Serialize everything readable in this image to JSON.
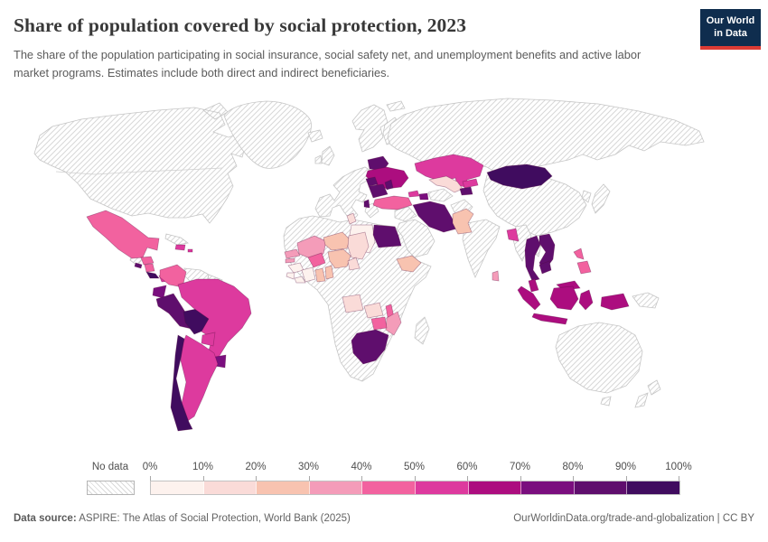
{
  "page": {
    "background": "#ffffff"
  },
  "header": {
    "title": "Share of population covered by social protection, 2023",
    "subtitle": "The share of the population participating in social insurance, social safety net, and unemployment benefits and active labor market programs. Estimates include both direct and indirect beneficiaries.",
    "logo": {
      "line1": "Our World",
      "line2": "in Data",
      "bg_color": "#0f2d4e",
      "accent_color": "#dc3b34"
    }
  },
  "legend": {
    "no_data_label": "No data",
    "tick_labels": [
      "0%",
      "10%",
      "20%",
      "30%",
      "40%",
      "50%",
      "60%",
      "70%",
      "80%",
      "90%",
      "100%"
    ],
    "buckets": [
      {
        "range": "0-10%",
        "color": "#fdf2ee"
      },
      {
        "range": "10-20%",
        "color": "#fadbd8"
      },
      {
        "range": "20-30%",
        "color": "#f8c3b0"
      },
      {
        "range": "30-40%",
        "color": "#f49cb9"
      },
      {
        "range": "40-50%",
        "color": "#f2629f"
      },
      {
        "range": "50-60%",
        "color": "#dd3a9e"
      },
      {
        "range": "60-70%",
        "color": "#ac0d7f"
      },
      {
        "range": "70-80%",
        "color": "#7a0e7e"
      },
      {
        "range": "80-90%",
        "color": "#5f0e6d"
      },
      {
        "range": "90-100%",
        "color": "#400c5f"
      }
    ]
  },
  "footer": {
    "source_label": "Data source:",
    "source_text": " ASPIRE: The Atlas of Social Protection, World Bank (2025)",
    "link_text": "OurWorldinData.org/trade-and-globalization | CC BY"
  },
  "chart_data": {
    "type": "choropleth_map",
    "title": "Share of population covered by social protection, 2023",
    "unit": "% of population covered",
    "countries": [
      {
        "id": "mexico",
        "name": "Mexico",
        "range": "40-50%"
      },
      {
        "id": "honduras",
        "name": "Honduras",
        "range": "40-50%"
      },
      {
        "id": "el-salvador",
        "name": "El Salvador",
        "range": "80-90%"
      },
      {
        "id": "nicaragua",
        "name": "Nicaragua",
        "range": "40-50%"
      },
      {
        "id": "costa-rica",
        "name": "Costa Rica",
        "range": "90-100%"
      },
      {
        "id": "panama",
        "name": "Panama",
        "range": "50-60%"
      },
      {
        "id": "dominican-republic",
        "name": "Dominican Republic",
        "range": "50-60%"
      },
      {
        "id": "puerto-rico",
        "name": "Puerto Rico",
        "range": "50-60%"
      },
      {
        "id": "colombia",
        "name": "Colombia",
        "range": "40-50%"
      },
      {
        "id": "ecuador",
        "name": "Ecuador",
        "range": "70-80%"
      },
      {
        "id": "peru",
        "name": "Peru",
        "range": "80-90%"
      },
      {
        "id": "bolivia",
        "name": "Bolivia",
        "range": "90-100%"
      },
      {
        "id": "brazil",
        "name": "Brazil",
        "range": "50-60%"
      },
      {
        "id": "paraguay",
        "name": "Paraguay",
        "range": "50-60%"
      },
      {
        "id": "uruguay",
        "name": "Uruguay",
        "range": "70-80%"
      },
      {
        "id": "argentina",
        "name": "Argentina",
        "range": "50-60%"
      },
      {
        "id": "chile",
        "name": "Chile",
        "range": "90-100%"
      },
      {
        "id": "tunisia",
        "name": "Tunisia",
        "range": "10-20%"
      },
      {
        "id": "libya",
        "name": "Libya",
        "range": "0-10%"
      },
      {
        "id": "egypt",
        "name": "Egypt",
        "range": "80-90%"
      },
      {
        "id": "senegal",
        "name": "Senegal",
        "range": "30-40%"
      },
      {
        "id": "gambia",
        "name": "Gambia",
        "range": "30-40%"
      },
      {
        "id": "guinea",
        "name": "Guinea",
        "range": "0-10%"
      },
      {
        "id": "sierra-leone",
        "name": "Sierra Leone",
        "range": "0-10%"
      },
      {
        "id": "liberia",
        "name": "Liberia",
        "range": "0-10%"
      },
      {
        "id": "cote-divoire",
        "name": "Cote d'Ivoire",
        "range": "0-10%"
      },
      {
        "id": "ghana",
        "name": "Ghana",
        "range": "20-30%"
      },
      {
        "id": "benin",
        "name": "Benin",
        "range": "20-30%"
      },
      {
        "id": "mali",
        "name": "Mali",
        "range": "30-40%"
      },
      {
        "id": "burkina-faso",
        "name": "Burkina Faso",
        "range": "40-50%"
      },
      {
        "id": "niger",
        "name": "Niger",
        "range": "20-30%"
      },
      {
        "id": "nigeria",
        "name": "Nigeria",
        "range": "20-30%"
      },
      {
        "id": "chad",
        "name": "Chad",
        "range": "10-20%"
      },
      {
        "id": "cameroon",
        "name": "Cameroon",
        "range": "10-20%"
      },
      {
        "id": "ethiopia",
        "name": "Ethiopia",
        "range": "20-30%"
      },
      {
        "id": "angola",
        "name": "Angola",
        "range": "10-20%"
      },
      {
        "id": "zambia",
        "name": "Zambia",
        "range": "10-20%"
      },
      {
        "id": "malawi",
        "name": "Malawi",
        "range": "40-50%"
      },
      {
        "id": "mozambique",
        "name": "Mozambique",
        "range": "30-40%"
      },
      {
        "id": "zimbabwe",
        "name": "Zimbabwe",
        "range": "40-50%"
      },
      {
        "id": "south-africa",
        "name": "South Africa",
        "range": "80-90%"
      },
      {
        "id": "belarus",
        "name": "Belarus",
        "range": "80-90%"
      },
      {
        "id": "ukraine",
        "name": "Ukraine",
        "range": "60-70%"
      },
      {
        "id": "moldova",
        "name": "Moldova",
        "range": "80-90%"
      },
      {
        "id": "romania",
        "name": "Romania",
        "range": "80-90%"
      },
      {
        "id": "hungary",
        "name": "Hungary",
        "range": "80-90%"
      },
      {
        "id": "albania",
        "name": "Albania",
        "range": "80-90%"
      },
      {
        "id": "turkey",
        "name": "Turkey",
        "range": "40-50%"
      },
      {
        "id": "georgia",
        "name": "Georgia",
        "range": "50-60%"
      },
      {
        "id": "azerbaijan",
        "name": "Azerbaijan",
        "range": "70-80%"
      },
      {
        "id": "kazakhstan",
        "name": "Kazakhstan",
        "range": "50-60%"
      },
      {
        "id": "uzbekistan",
        "name": "Uzbekistan",
        "range": "10-20%"
      },
      {
        "id": "kyrgyzstan",
        "name": "Kyrgyzstan",
        "range": "50-60%"
      },
      {
        "id": "tajikistan",
        "name": "Tajikistan",
        "range": "80-90%"
      },
      {
        "id": "mongolia",
        "name": "Mongolia",
        "range": "90-100%"
      },
      {
        "id": "iran",
        "name": "Iran",
        "range": "80-90%"
      },
      {
        "id": "pakistan",
        "name": "Pakistan",
        "range": "20-30%"
      },
      {
        "id": "bangladesh",
        "name": "Bangladesh",
        "range": "50-60%"
      },
      {
        "id": "sri-lanka",
        "name": "Sri Lanka",
        "range": "30-40%"
      },
      {
        "id": "thailand",
        "name": "Thailand",
        "range": "80-90%"
      },
      {
        "id": "vietnam",
        "name": "Vietnam",
        "range": "80-90%"
      },
      {
        "id": "cambodia",
        "name": "Cambodia",
        "range": "80-90%"
      },
      {
        "id": "malaysia",
        "name": "Malaysia",
        "range": "60-70%"
      },
      {
        "id": "indonesia",
        "name": "Indonesia",
        "range": "60-70%"
      },
      {
        "id": "philippines",
        "name": "Philippines",
        "range": "40-50%"
      }
    ],
    "no_data_regions": [
      "United States",
      "Canada",
      "Greenland",
      "Cuba",
      "Venezuela",
      "Guyana",
      "Western Europe",
      "Russia",
      "China",
      "India",
      "Myanmar",
      "Japan",
      "South Korea",
      "Saudi Arabia",
      "Afghanistan",
      "Morocco",
      "Algeria",
      "Mauritania",
      "Sudan",
      "DR Congo",
      "Kenya",
      "Tanzania",
      "Somalia",
      "Namibia",
      "Botswana",
      "Madagascar",
      "Papua New Guinea",
      "Australia",
      "New Zealand",
      "Guatemala"
    ]
  }
}
